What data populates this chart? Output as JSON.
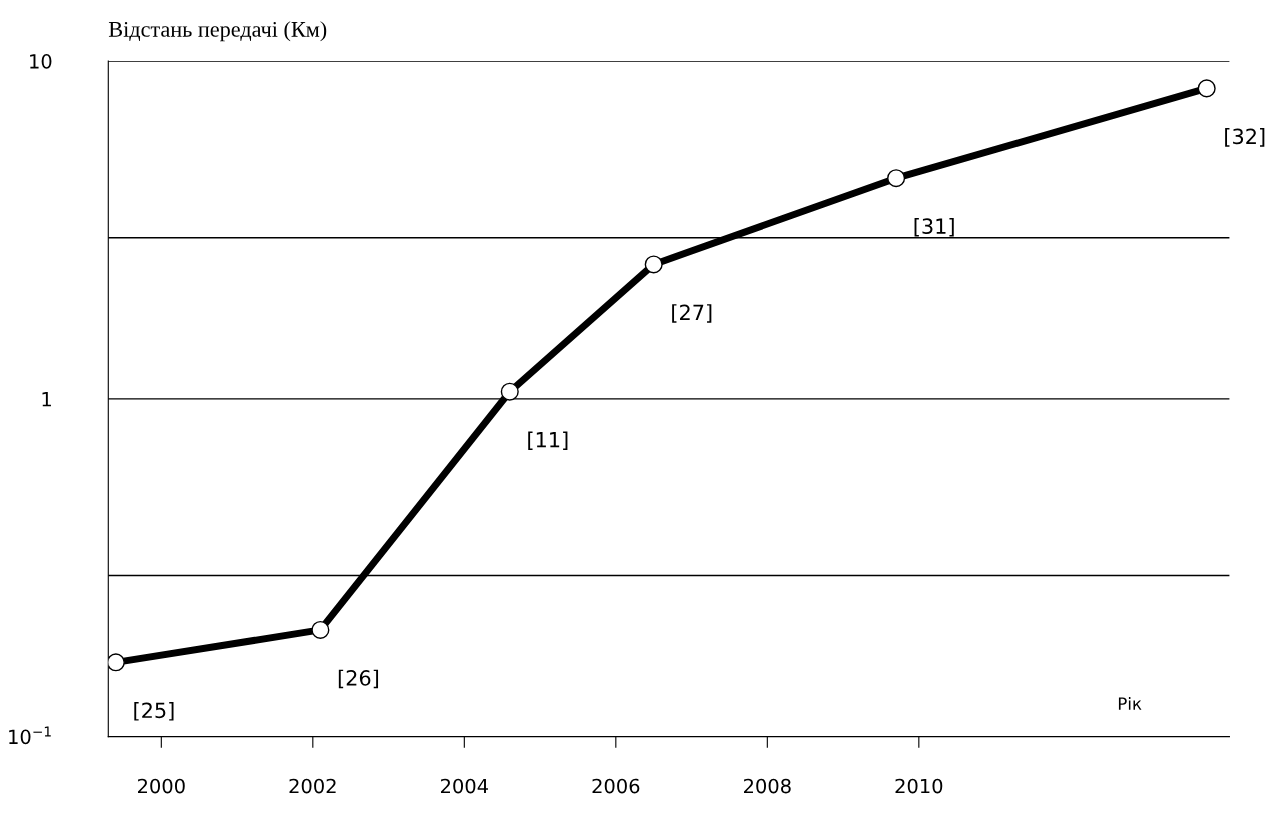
{
  "chart_data": {
    "type": "line",
    "ylabel": "Відстань передачі (Км)",
    "xlabel": "Рік",
    "x": [
      1999.4,
      2002.1,
      2004.6,
      2006.5,
      2009.7,
      2013.8
    ],
    "series": [
      {
        "color": "#000000",
        "values": [
          0.166,
          0.207,
          1.05,
          2.5,
          4.5,
          8.3
        ]
      }
    ],
    "log": "y",
    "ylim": [
      0.1,
      10
    ],
    "yticks": [
      {
        "value": 0.1,
        "label": "10$^{−1}$"
      },
      {
        "value": 0.3,
        "label": null
      },
      1,
      {
        "value": 3,
        "label": null
      },
      10
    ],
    "xlim": [
      1999.3,
      2014.1
    ],
    "xticks": [
      2000,
      2002,
      2004,
      2006,
      2008,
      2010
    ],
    "grid": "y",
    "marker": "circle",
    "line_style": "solid",
    "annotations": [
      {
        "text": "[25]",
        "x": 1999.4,
        "y": 0.166
      },
      {
        "text": "[26]",
        "x": 2002.1,
        "y": 0.207
      },
      {
        "text": "[11]",
        "x": 2004.6,
        "y": 1.05
      },
      {
        "text": "[27]",
        "x": 2006.5,
        "y": 2.5
      },
      {
        "text": "[31]",
        "x": 2009.7,
        "y": 4.5
      },
      {
        "text": "[32]",
        "x": 2013.8,
        "y": 8.3
      }
    ]
  }
}
